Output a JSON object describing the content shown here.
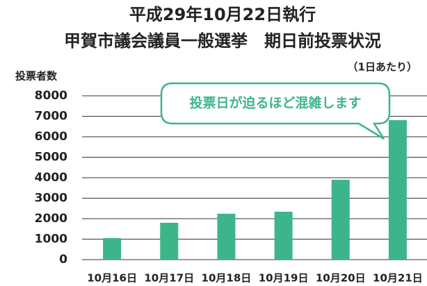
{
  "chart_data": {
    "type": "bar",
    "title": "平成29年10月22日執行",
    "subtitle": "甲賀市議会議員一般選挙　期日前投票状況",
    "unit_note": "（1日あたり）",
    "ylabel": "投票者数",
    "annotation": "投票日が迫るほど混雑します",
    "categories": [
      "10月16日",
      "10月17日",
      "10月18日",
      "10月19日",
      "10月20日",
      "10月21日"
    ],
    "values": [
      1050,
      1800,
      2240,
      2340,
      3900,
      6810
    ],
    "color": "#3db58a",
    "ylim": [
      0,
      8000
    ],
    "yticks": [
      0,
      1000,
      2000,
      3000,
      4000,
      5000,
      6000,
      7000,
      8000
    ],
    "grid": true
  }
}
